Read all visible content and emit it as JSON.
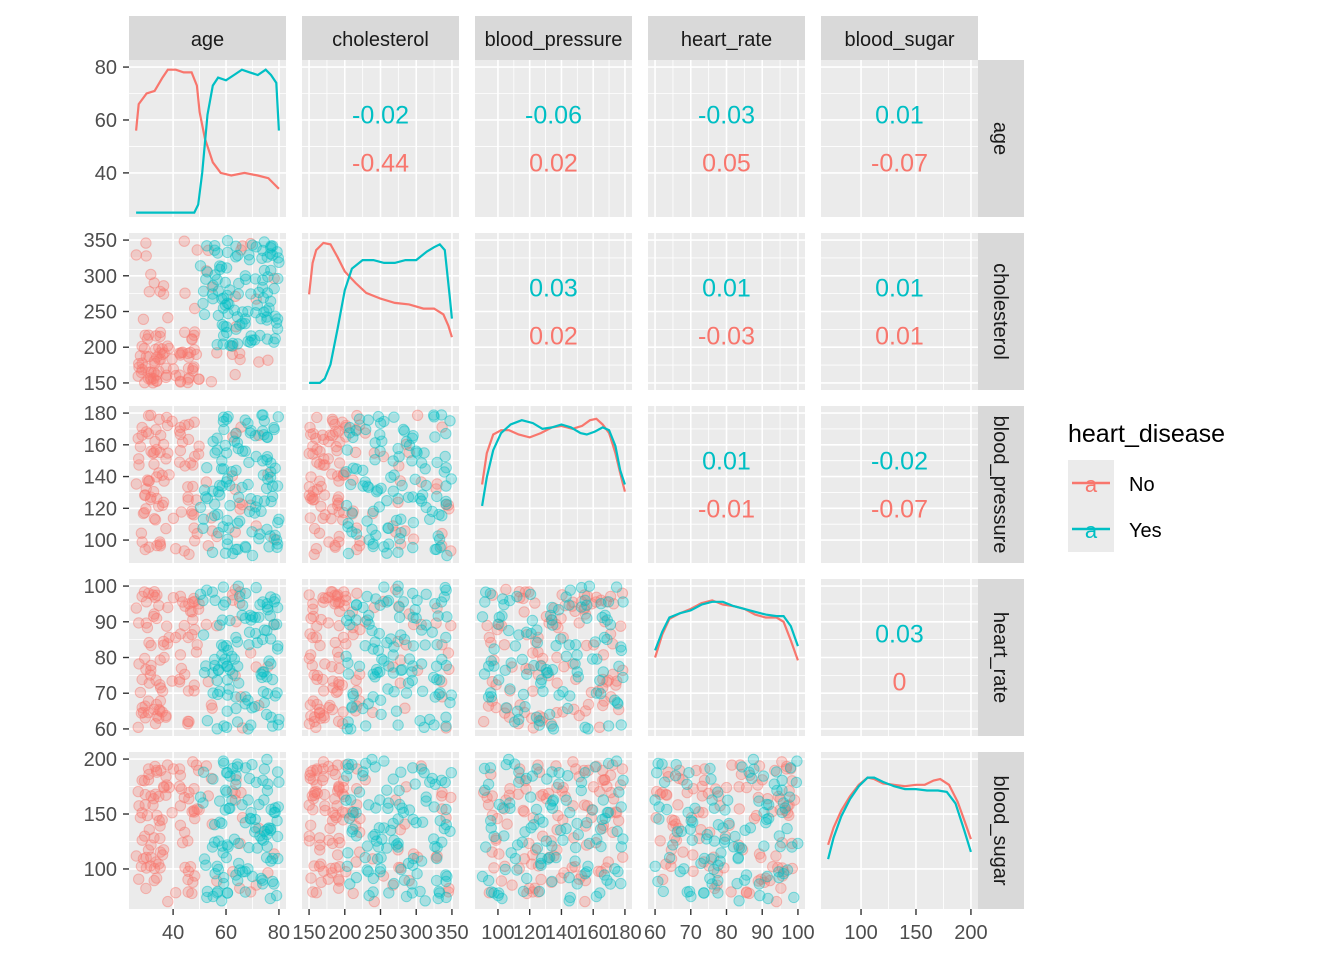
{
  "chart_data": {
    "type": "scatter-matrix",
    "variables": [
      "age",
      "cholesterol",
      "blood_pressure",
      "heart_rate",
      "blood_sugar"
    ],
    "ranges": {
      "age": [
        26,
        80
      ],
      "cholesterol": [
        150,
        350
      ],
      "blood_pressure": [
        90,
        180
      ],
      "heart_rate": [
        60,
        100
      ],
      "blood_sugar": [
        70,
        200
      ]
    },
    "ticks": {
      "age": [
        40,
        60,
        80
      ],
      "cholesterol": [
        150,
        200,
        250,
        300,
        350
      ],
      "blood_pressure": [
        100,
        120,
        140,
        160,
        180
      ],
      "heart_rate": [
        60,
        70,
        80,
        90,
        100
      ],
      "blood_sugar": [
        100,
        150,
        200
      ]
    },
    "y_ticks_first_row": [
      40,
      60,
      80
    ],
    "legend": {
      "title": "heart_disease",
      "position": "right",
      "entries": [
        {
          "label": "No",
          "color": "#F8766D"
        },
        {
          "label": "Yes",
          "color": "#00BFC4"
        }
      ]
    },
    "correlations": [
      {
        "row": "age",
        "col": "cholesterol",
        "Yes": "-0.02",
        "No": "-0.44"
      },
      {
        "row": "age",
        "col": "blood_pressure",
        "Yes": "-0.06",
        "No": "0.02"
      },
      {
        "row": "age",
        "col": "heart_rate",
        "Yes": "-0.03",
        "No": "0.05"
      },
      {
        "row": "age",
        "col": "blood_sugar",
        "Yes": "0.01",
        "No": "-0.07"
      },
      {
        "row": "cholesterol",
        "col": "blood_pressure",
        "Yes": "0.03",
        "No": "0.02"
      },
      {
        "row": "cholesterol",
        "col": "heart_rate",
        "Yes": "0.01",
        "No": "-0.03"
      },
      {
        "row": "cholesterol",
        "col": "blood_sugar",
        "Yes": "0.01",
        "No": "0.01"
      },
      {
        "row": "blood_pressure",
        "col": "heart_rate",
        "Yes": "0.01",
        "No": "-0.01"
      },
      {
        "row": "blood_pressure",
        "col": "blood_sugar",
        "Yes": "-0.02",
        "No": "-0.07"
      },
      {
        "row": "heart_rate",
        "col": "blood_sugar",
        "Yes": "0.03",
        "No": "0"
      }
    ],
    "densities": {
      "age": {
        "No": [
          [
            26,
            56
          ],
          [
            27,
            66
          ],
          [
            30,
            70
          ],
          [
            33,
            71
          ],
          [
            36,
            76
          ],
          [
            38,
            79
          ],
          [
            41,
            79
          ],
          [
            44,
            78
          ],
          [
            47,
            78
          ],
          [
            49,
            73
          ],
          [
            50,
            63
          ],
          [
            52,
            53
          ],
          [
            55,
            44
          ],
          [
            58,
            40
          ],
          [
            62,
            39
          ],
          [
            67,
            40
          ],
          [
            72,
            39
          ],
          [
            76,
            38
          ],
          [
            78,
            36
          ],
          [
            80,
            34
          ]
        ],
        "Yes": [
          [
            26,
            25
          ],
          [
            44,
            25
          ],
          [
            48,
            25
          ],
          [
            49.5,
            28
          ],
          [
            51,
            40
          ],
          [
            53,
            62
          ],
          [
            55,
            73
          ],
          [
            57,
            76
          ],
          [
            60,
            75
          ],
          [
            63,
            77
          ],
          [
            66,
            79
          ],
          [
            69,
            78
          ],
          [
            72,
            77
          ],
          [
            75,
            79
          ],
          [
            77,
            77
          ],
          [
            79,
            74
          ],
          [
            80,
            56
          ]
        ]
      },
      "cholesterol": {
        "No": [
          [
            150,
            0.62
          ],
          [
            155,
            0.84
          ],
          [
            160,
            0.93
          ],
          [
            170,
            0.98
          ],
          [
            180,
            0.97
          ],
          [
            190,
            0.88
          ],
          [
            200,
            0.78
          ],
          [
            215,
            0.7
          ],
          [
            230,
            0.63
          ],
          [
            250,
            0.59
          ],
          [
            270,
            0.56
          ],
          [
            290,
            0.55
          ],
          [
            310,
            0.52
          ],
          [
            325,
            0.52
          ],
          [
            338,
            0.48
          ],
          [
            345,
            0.4
          ],
          [
            350,
            0.32
          ]
        ],
        "Yes": [
          [
            150,
            0.0
          ],
          [
            165,
            0.0
          ],
          [
            172,
            0.03
          ],
          [
            180,
            0.13
          ],
          [
            190,
            0.38
          ],
          [
            200,
            0.65
          ],
          [
            210,
            0.8
          ],
          [
            225,
            0.86
          ],
          [
            240,
            0.86
          ],
          [
            255,
            0.84
          ],
          [
            270,
            0.84
          ],
          [
            285,
            0.86
          ],
          [
            300,
            0.86
          ],
          [
            315,
            0.92
          ],
          [
            325,
            0.95
          ],
          [
            333,
            0.97
          ],
          [
            340,
            0.93
          ],
          [
            347,
            0.6
          ],
          [
            350,
            0.45
          ]
        ]
      },
      "blood_pressure": {
        "No": [
          [
            90,
            0.5
          ],
          [
            93,
            0.72
          ],
          [
            97,
            0.85
          ],
          [
            102,
            0.88
          ],
          [
            107,
            0.88
          ],
          [
            113,
            0.85
          ],
          [
            120,
            0.83
          ],
          [
            127,
            0.86
          ],
          [
            134,
            0.9
          ],
          [
            140,
            0.91
          ],
          [
            147,
            0.89
          ],
          [
            153,
            0.91
          ],
          [
            158,
            0.95
          ],
          [
            162,
            0.96
          ],
          [
            166,
            0.92
          ],
          [
            170,
            0.86
          ],
          [
            174,
            0.72
          ],
          [
            177,
            0.58
          ],
          [
            180,
            0.45
          ]
        ],
        "Yes": [
          [
            90,
            0.35
          ],
          [
            93,
            0.55
          ],
          [
            97,
            0.74
          ],
          [
            102,
            0.86
          ],
          [
            108,
            0.92
          ],
          [
            115,
            0.95
          ],
          [
            122,
            0.93
          ],
          [
            128,
            0.89
          ],
          [
            134,
            0.9
          ],
          [
            140,
            0.92
          ],
          [
            146,
            0.9
          ],
          [
            152,
            0.86
          ],
          [
            156,
            0.85
          ],
          [
            161,
            0.87
          ],
          [
            166,
            0.9
          ],
          [
            170,
            0.88
          ],
          [
            174,
            0.77
          ],
          [
            177,
            0.6
          ],
          [
            180,
            0.5
          ]
        ]
      },
      "heart_rate": {
        "No": [
          [
            60,
            0.5
          ],
          [
            62,
            0.66
          ],
          [
            64,
            0.77
          ],
          [
            67,
            0.81
          ],
          [
            70,
            0.84
          ],
          [
            73,
            0.88
          ],
          [
            76,
            0.9
          ],
          [
            79,
            0.87
          ],
          [
            82,
            0.86
          ],
          [
            85,
            0.84
          ],
          [
            88,
            0.8
          ],
          [
            91,
            0.78
          ],
          [
            94,
            0.78
          ],
          [
            96,
            0.75
          ],
          [
            98,
            0.62
          ],
          [
            100,
            0.48
          ]
        ],
        "Yes": [
          [
            60,
            0.55
          ],
          [
            62,
            0.68
          ],
          [
            64,
            0.78
          ],
          [
            67,
            0.81
          ],
          [
            70,
            0.83
          ],
          [
            73,
            0.87
          ],
          [
            76,
            0.89
          ],
          [
            79,
            0.89
          ],
          [
            82,
            0.86
          ],
          [
            85,
            0.84
          ],
          [
            88,
            0.82
          ],
          [
            91,
            0.8
          ],
          [
            94,
            0.79
          ],
          [
            96,
            0.79
          ],
          [
            98,
            0.72
          ],
          [
            100,
            0.58
          ]
        ]
      },
      "blood_sugar": {
        "No": [
          [
            70,
            0.4
          ],
          [
            75,
            0.52
          ],
          [
            82,
            0.64
          ],
          [
            90,
            0.74
          ],
          [
            98,
            0.82
          ],
          [
            106,
            0.87
          ],
          [
            112,
            0.86
          ],
          [
            120,
            0.83
          ],
          [
            130,
            0.82
          ],
          [
            140,
            0.81
          ],
          [
            150,
            0.82
          ],
          [
            158,
            0.82
          ],
          [
            166,
            0.85
          ],
          [
            172,
            0.86
          ],
          [
            180,
            0.82
          ],
          [
            188,
            0.7
          ],
          [
            195,
            0.55
          ],
          [
            200,
            0.44
          ]
        ],
        "Yes": [
          [
            70,
            0.3
          ],
          [
            75,
            0.45
          ],
          [
            82,
            0.6
          ],
          [
            90,
            0.72
          ],
          [
            98,
            0.81
          ],
          [
            106,
            0.87
          ],
          [
            112,
            0.87
          ],
          [
            120,
            0.84
          ],
          [
            130,
            0.81
          ],
          [
            140,
            0.79
          ],
          [
            150,
            0.79
          ],
          [
            160,
            0.78
          ],
          [
            170,
            0.78
          ],
          [
            178,
            0.77
          ],
          [
            186,
            0.69
          ],
          [
            194,
            0.5
          ],
          [
            200,
            0.35
          ]
        ]
      }
    },
    "scatter": {
      "n_per_group": 110,
      "Yes_age_range": [
        50,
        80
      ],
      "No_age_range": [
        26,
        80
      ],
      "Yes_cholesterol_range": [
        200,
        350
      ],
      "note_fraction_no_age_below_50": 0.78
    }
  }
}
